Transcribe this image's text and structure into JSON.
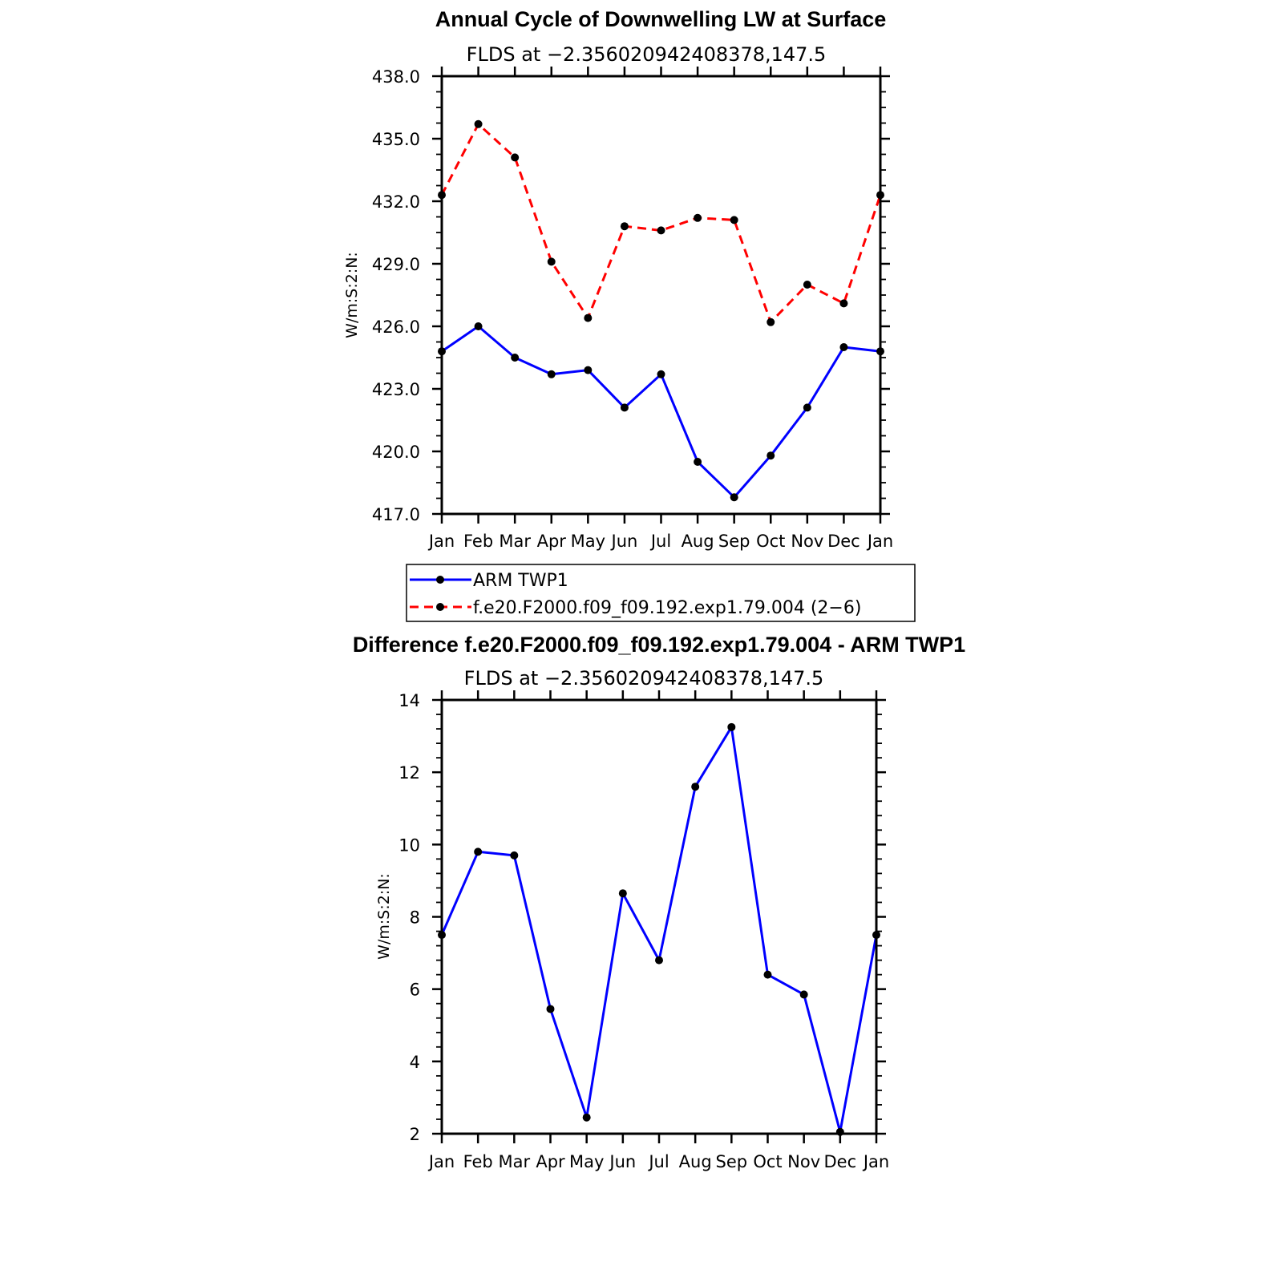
{
  "chart_data": [
    {
      "type": "line",
      "title": "Annual Cycle of Downwelling LW at Surface",
      "subtitle": "FLDS at −2.356020942408378,147.5",
      "ylabel": "W/m:S:2:N:",
      "xlabel": "",
      "categories": [
        "Jan",
        "Feb",
        "Mar",
        "Apr",
        "May",
        "Jun",
        "Jul",
        "Aug",
        "Sep",
        "Oct",
        "Nov",
        "Dec",
        "Jan"
      ],
      "ylim": [
        417.0,
        438.0
      ],
      "yticks": [
        "417.0",
        "420.0",
        "423.0",
        "426.0",
        "429.0",
        "432.0",
        "435.0",
        "438.0"
      ],
      "grid": false,
      "legend_position": "below",
      "series": [
        {
          "name": "ARM TWP1",
          "color": "#0000ff",
          "dash": "solid",
          "values": [
            424.8,
            426.0,
            424.5,
            423.7,
            423.9,
            422.1,
            423.7,
            419.5,
            417.8,
            419.8,
            422.1,
            425.0,
            424.8
          ]
        },
        {
          "name": "f.e20.F2000.f09_f09.192.exp1.79.004 (2−6)",
          "color": "#ff0000",
          "dash": "dashed",
          "values": [
            432.3,
            435.7,
            434.1,
            429.1,
            426.4,
            430.8,
            430.6,
            431.2,
            431.1,
            426.2,
            428.0,
            427.1,
            432.3
          ]
        }
      ]
    },
    {
      "type": "line",
      "title": "Difference f.e20.F2000.f09_f09.192.exp1.79.004 - ARM TWP1",
      "subtitle": "FLDS at −2.356020942408378,147.5",
      "ylabel": "W/m:S:2:N:",
      "xlabel": "",
      "categories": [
        "Jan",
        "Feb",
        "Mar",
        "Apr",
        "May",
        "Jun",
        "Jul",
        "Aug",
        "Sep",
        "Oct",
        "Nov",
        "Dec",
        "Jan"
      ],
      "ylim": [
        2,
        14
      ],
      "yticks": [
        "2",
        "4",
        "6",
        "8",
        "10",
        "12",
        "14"
      ],
      "grid": false,
      "series": [
        {
          "color": "#0000ff",
          "dash": "solid",
          "values": [
            7.5,
            9.8,
            9.7,
            5.45,
            2.45,
            8.65,
            6.8,
            11.6,
            13.25,
            6.4,
            5.85,
            2.05,
            7.5
          ]
        }
      ]
    }
  ]
}
